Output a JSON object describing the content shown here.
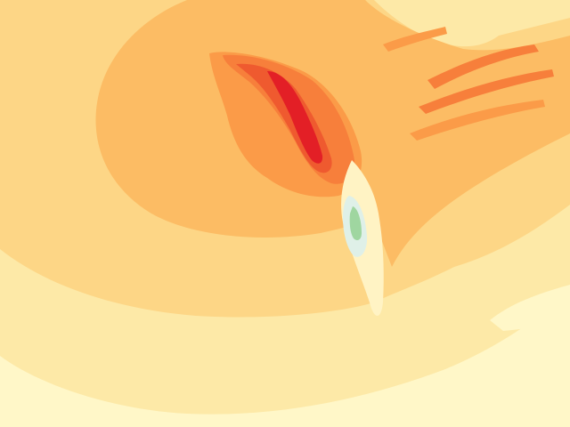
{
  "map": {
    "type": "filled-contour",
    "palette": {
      "level_0": "#fff7c8",
      "level_1": "#fde9a7",
      "level_2": "#fdd686",
      "level_3": "#fcbc64",
      "level_4": "#fb9b48",
      "level_5": "#f77f3b",
      "level_6": "#ef5a2f",
      "level_7": "#e31f26",
      "cool_1": "#dff0e8",
      "cool_2": "#9fd6a0",
      "pale": "#fff3c4"
    }
  }
}
